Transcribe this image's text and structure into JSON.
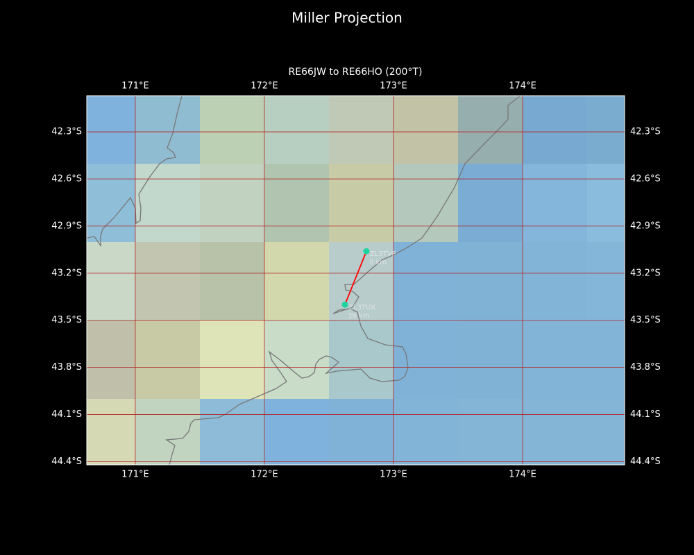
{
  "title": "Miller Projection",
  "subtitle": "RE66JW to RE66HO (200°T)",
  "map": {
    "xlim": [
      170.624,
      174.79
    ],
    "ylim": [
      -44.42,
      -42.07
    ],
    "xticks": [
      {
        "value": 171,
        "label": "171°E"
      },
      {
        "value": 172,
        "label": "172°E"
      },
      {
        "value": 173,
        "label": "173°E"
      },
      {
        "value": 174,
        "label": "174°E"
      }
    ],
    "yticks": [
      {
        "value": -42.3,
        "label": "42.3°S"
      },
      {
        "value": -42.6,
        "label": "42.6°S"
      },
      {
        "value": -42.9,
        "label": "42.9°S"
      },
      {
        "value": -43.2,
        "label": "43.2°S"
      },
      {
        "value": -43.5,
        "label": "43.5°S"
      },
      {
        "value": -43.8,
        "label": "43.8°S"
      },
      {
        "value": -44.1,
        "label": "44.1°S"
      },
      {
        "value": -44.4,
        "label": "44.4°S"
      }
    ],
    "grid": true,
    "grid_color": "#b22222"
  },
  "path_color": "#ff0000",
  "stations": [
    {
      "name": "ZL3TVP",
      "distance_label": "0 km",
      "lon": 172.79,
      "lat": -43.06,
      "color": "#20d3a0"
    },
    {
      "name": "ZL3TUX",
      "distance_label": "39 km",
      "lon": 172.624,
      "lat": -43.4,
      "color": "#20d3a0"
    }
  ]
}
